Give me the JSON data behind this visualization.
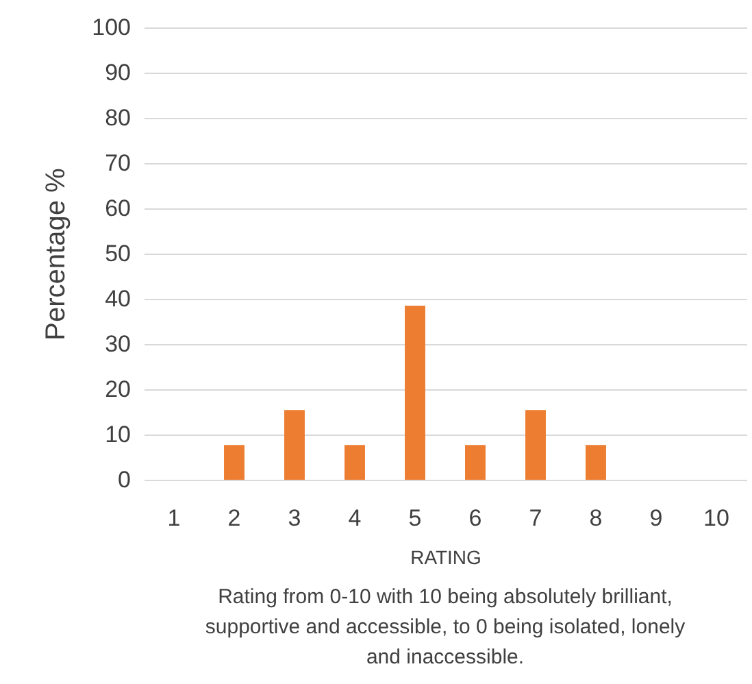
{
  "chart_data": {
    "type": "bar",
    "categories": [
      "1",
      "2",
      "3",
      "4",
      "5",
      "6",
      "7",
      "8",
      "9",
      "10"
    ],
    "values": [
      0,
      7.7,
      15.4,
      7.7,
      38.5,
      7.7,
      15.4,
      7.7,
      0,
      0
    ],
    "color": "#ed7d31",
    "ylim": [
      0,
      100
    ],
    "yticks": [
      0,
      10,
      20,
      30,
      40,
      50,
      60,
      70,
      80,
      90,
      100
    ],
    "grid": "y",
    "xlabel": "RATING",
    "ylabel": "Percentage %",
    "annotations": [
      "Rating from 0-10 with 10 being absolutely brilliant,\nsupportive and accessible, to 0 being isolated, lonely\nand inaccessible."
    ]
  }
}
